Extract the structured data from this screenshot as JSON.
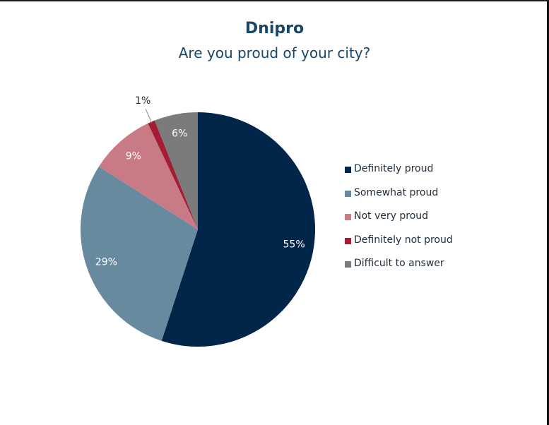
{
  "chart_data": {
    "type": "pie",
    "title": "Dnipro",
    "subtitle": "Are you proud of your city?",
    "slices": [
      {
        "label": "Definitely proud",
        "value": 55,
        "display": "55%",
        "color": "#01264a",
        "label_color": "#ffffff"
      },
      {
        "label": "Somewhat proud",
        "value": 29,
        "display": "29%",
        "color": "#678a9e",
        "label_color": "#ffffff"
      },
      {
        "label": "Not very proud",
        "value": 9,
        "display": "9%",
        "color": "#c87a85",
        "label_color": "#ffffff"
      },
      {
        "label": "Definitely not proud",
        "value": 1,
        "display": "1%",
        "color": "#a31d33",
        "label_color": "#1f2d3a",
        "label_outside": true
      },
      {
        "label": "Difficult to answer",
        "value": 6,
        "display": "6%",
        "color": "#7b7b7b",
        "label_color": "#ffffff"
      }
    ],
    "start_angle_deg": 0,
    "direction": "clockwise",
    "legend_position": "right"
  }
}
